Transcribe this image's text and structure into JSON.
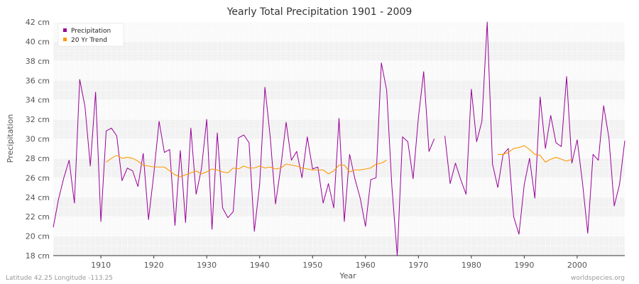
{
  "chart_data": {
    "type": "line",
    "title": "Yearly Total Precipitation 1901 - 2009",
    "xlabel": "Year",
    "ylabel": "Precipitation",
    "xlim": [
      1901,
      2009
    ],
    "ylim": [
      18,
      42
    ],
    "x_ticks": [
      1910,
      1920,
      1930,
      1940,
      1950,
      1960,
      1970,
      1980,
      1990,
      2000
    ],
    "y_ticks": [
      18,
      20,
      22,
      24,
      26,
      28,
      30,
      32,
      34,
      36,
      38,
      40,
      42
    ],
    "y_tick_suffix": " cm",
    "grid": true,
    "legend_position": "top-left",
    "series": [
      {
        "name": "Precipitation",
        "color": "#990099",
        "x": [
          1901,
          1902,
          1903,
          1904,
          1905,
          1906,
          1907,
          1908,
          1909,
          1910,
          1911,
          1912,
          1913,
          1914,
          1915,
          1916,
          1917,
          1918,
          1919,
          1920,
          1921,
          1922,
          1923,
          1924,
          1925,
          1926,
          1927,
          1928,
          1929,
          1930,
          1931,
          1932,
          1933,
          1934,
          1935,
          1936,
          1937,
          1938,
          1939,
          1940,
          1941,
          1942,
          1943,
          1944,
          1945,
          1946,
          1947,
          1948,
          1949,
          1950,
          1951,
          1952,
          1953,
          1954,
          1955,
          1956,
          1957,
          1958,
          1959,
          1960,
          1961,
          1962,
          1963,
          1964,
          1965,
          1966,
          1967,
          1968,
          1969,
          1970,
          1971,
          1972,
          1973,
          1974,
          1975,
          1976,
          1977,
          1978,
          1979,
          1980,
          1981,
          1982,
          1983,
          1984,
          1985,
          1986,
          1987,
          1988,
          1989,
          1990,
          1991,
          1992,
          1993,
          1994,
          1995,
          1996,
          1997,
          1998,
          1999,
          2000,
          2001,
          2002,
          2003,
          2004,
          2005,
          2006,
          2007,
          2008,
          2009
        ],
        "values": [
          20.9,
          23.8,
          26.0,
          27.8,
          23.4,
          36.1,
          33.3,
          27.2,
          34.8,
          21.5,
          30.8,
          31.1,
          30.3,
          25.7,
          27.0,
          26.7,
          25.1,
          28.5,
          21.7,
          26.4,
          31.8,
          28.6,
          28.9,
          21.1,
          28.8,
          21.4,
          31.1,
          24.3,
          26.9,
          32.0,
          20.7,
          30.6,
          22.9,
          21.9,
          22.5,
          30.1,
          30.4,
          29.6,
          20.5,
          25.3,
          35.3,
          30.2,
          23.3,
          27.1,
          31.7,
          27.8,
          28.7,
          26.0,
          30.2,
          26.9,
          27.1,
          23.4,
          25.4,
          22.9,
          32.1,
          21.5,
          28.4,
          25.9,
          23.9,
          21.0,
          25.8,
          26.0,
          37.8,
          35.0,
          25.0,
          18.0,
          30.2,
          29.7,
          25.9,
          32.2,
          36.9,
          28.7,
          30.0,
          null,
          30.3,
          25.4,
          27.5,
          25.8,
          24.3,
          35.1,
          29.7,
          31.8,
          42.0,
          27.4,
          25.0,
          28.4,
          29.0,
          22.0,
          20.2,
          25.3,
          28.0,
          23.9,
          34.3,
          29.0,
          32.4,
          29.6,
          29.2,
          36.4,
          27.5,
          29.9,
          25.5,
          20.3,
          28.4,
          27.8,
          33.4,
          30.1,
          23.1,
          25.3,
          29.8
        ]
      },
      {
        "name": "20 Yr Trend",
        "color": "#ff9900",
        "x": [
          1911,
          1912,
          1913,
          1914,
          1915,
          1916,
          1917,
          1918,
          1919,
          1920,
          1921,
          1922,
          1923,
          1924,
          1925,
          1926,
          1927,
          1928,
          1929,
          1930,
          1931,
          1932,
          1933,
          1934,
          1935,
          1936,
          1937,
          1938,
          1939,
          1940,
          1941,
          1942,
          1943,
          1944,
          1945,
          1946,
          1947,
          1948,
          1949,
          1950,
          1951,
          1952,
          1953,
          1954,
          1955,
          1956,
          1957,
          1958,
          1959,
          1960,
          1961,
          1962,
          1963,
          1964,
          1965,
          1966,
          1967,
          1968,
          1969,
          1970,
          1971,
          1972,
          1973,
          1974,
          1975,
          1976,
          1977,
          1978,
          1979,
          1980,
          1981,
          1982,
          1983,
          1984,
          1985,
          1986,
          1987,
          1988,
          1989,
          1990,
          1991,
          1992,
          1993,
          1994,
          1995,
          1996,
          1997,
          1998,
          1999
        ],
        "values": [
          27.6,
          28.0,
          28.3,
          28.0,
          28.1,
          28.0,
          27.7,
          27.3,
          27.2,
          27.1,
          27.1,
          27.1,
          26.7,
          26.3,
          26.1,
          26.3,
          26.5,
          26.7,
          26.4,
          26.6,
          26.9,
          26.8,
          26.6,
          26.5,
          27.0,
          26.9,
          27.2,
          27.0,
          27.0,
          27.2,
          27.0,
          27.1,
          26.9,
          27.0,
          27.4,
          27.3,
          27.2,
          27.0,
          26.9,
          26.8,
          26.8,
          26.8,
          26.4,
          26.7,
          27.3,
          27.3,
          26.6,
          26.8,
          26.8,
          26.9,
          27.0,
          27.4,
          27.5,
          27.8,
          null,
          null,
          null,
          null,
          null,
          null,
          null,
          null,
          null,
          null,
          null,
          null,
          null,
          null,
          null,
          null,
          null,
          null,
          null,
          null,
          28.4,
          28.4,
          28.6,
          29.0,
          29.1,
          29.3,
          28.9,
          28.4,
          28.3,
          27.6,
          27.9,
          28.1,
          27.9,
          27.7,
          27.9
        ]
      }
    ]
  },
  "footer": {
    "coordinates": "Latitude 42.25 Longitude -113.25",
    "source": "worldspecies.org"
  }
}
